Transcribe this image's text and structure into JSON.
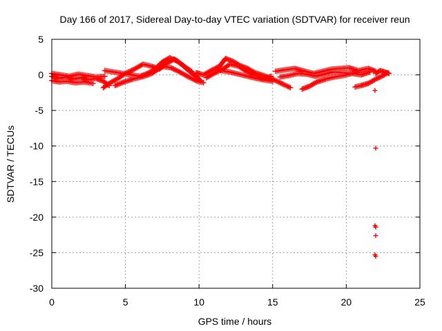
{
  "chart_data": {
    "type": "scatter",
    "title": "Day 166 of 2017, Sidereal Day-to-day VTEC variation (SDTVAR) for receiver reun",
    "xlabel": "GPS time / hours",
    "ylabel": "SDTVAR / TECUs",
    "xlim": [
      0,
      25
    ],
    "ylim": [
      -30,
      5
    ],
    "xticks": [
      0,
      5,
      10,
      15,
      20,
      25
    ],
    "yticks": [
      5,
      0,
      -5,
      -10,
      -15,
      -20,
      -25,
      -30
    ],
    "grid": true,
    "marker": "+",
    "color": "#ff0000",
    "series": [
      {
        "name": "SDTVAR",
        "tracks": [
          [
            [
              0.0,
              -0.2
            ],
            [
              0.5,
              -0.5
            ],
            [
              1.0,
              -0.3
            ],
            [
              1.5,
              -0.6
            ],
            [
              2.0,
              -0.4
            ],
            [
              2.5,
              -0.7
            ],
            [
              3.0,
              -0.5
            ],
            [
              3.5,
              -0.9
            ],
            [
              3.9,
              -1.5
            ]
          ],
          [
            [
              0.0,
              0.2
            ],
            [
              0.6,
              0.0
            ],
            [
              1.2,
              -0.2
            ],
            [
              1.8,
              0.1
            ],
            [
              2.4,
              -0.1
            ],
            [
              3.0,
              -0.3
            ],
            [
              3.6,
              -0.2
            ]
          ],
          [
            [
              0.0,
              -0.8
            ],
            [
              0.5,
              -1.0
            ],
            [
              1.0,
              -0.9
            ],
            [
              1.6,
              -1.1
            ],
            [
              2.2,
              -1.0
            ],
            [
              2.8,
              -1.2
            ]
          ],
          [
            [
              3.5,
              -1.8
            ],
            [
              3.9,
              -1.2
            ],
            [
              4.5,
              -0.5
            ],
            [
              5.0,
              0.2
            ],
            [
              5.6,
              0.8
            ],
            [
              6.2,
              1.5
            ],
            [
              6.8,
              1.2
            ],
            [
              7.3,
              0.8
            ],
            [
              7.8,
              1.6
            ],
            [
              8.3,
              2.2
            ],
            [
              8.8,
              1.5
            ],
            [
              9.3,
              0.6
            ],
            [
              9.8,
              -0.2
            ],
            [
              10.1,
              -0.8
            ]
          ],
          [
            [
              3.6,
              0.6
            ],
            [
              4.2,
              0.4
            ],
            [
              4.8,
              0.2
            ],
            [
              5.4,
              0.0
            ],
            [
              6.0,
              -0.2
            ],
            [
              6.5,
              0.2
            ],
            [
              7.0,
              0.8
            ],
            [
              7.5,
              1.8
            ],
            [
              8.0,
              2.4
            ],
            [
              8.5,
              2.0
            ],
            [
              9.0,
              1.2
            ],
            [
              9.5,
              0.5
            ]
          ],
          [
            [
              4.3,
              -1.5
            ],
            [
              4.9,
              -1.0
            ],
            [
              5.5,
              -0.6
            ],
            [
              6.1,
              -0.3
            ],
            [
              6.8,
              0.2
            ],
            [
              7.5,
              1.2
            ],
            [
              8.1,
              1.0
            ],
            [
              8.7,
              0.4
            ],
            [
              9.3,
              -0.3
            ],
            [
              9.9,
              -0.9
            ],
            [
              10.3,
              -1.1
            ]
          ],
          [
            [
              9.8,
              0.3
            ],
            [
              10.3,
              0.0
            ],
            [
              10.9,
              0.7
            ],
            [
              11.4,
              1.2
            ],
            [
              11.8,
              2.3
            ],
            [
              12.3,
              1.9
            ],
            [
              12.8,
              1.3
            ],
            [
              13.3,
              0.9
            ],
            [
              13.8,
              0.3
            ],
            [
              14.4,
              -0.1
            ],
            [
              15.0,
              -0.6
            ],
            [
              15.6,
              -1.2
            ],
            [
              16.2,
              -1.8
            ]
          ],
          [
            [
              10.5,
              -0.4
            ],
            [
              11.1,
              0.3
            ],
            [
              11.6,
              0.8
            ],
            [
              12.1,
              1.5
            ],
            [
              12.7,
              1.2
            ],
            [
              13.2,
              0.5
            ],
            [
              13.8,
              0.0
            ],
            [
              14.3,
              -0.6
            ],
            [
              14.9,
              -0.2
            ]
          ],
          [
            [
              11.5,
              0.6
            ],
            [
              12.1,
              0.4
            ],
            [
              12.7,
              0.1
            ],
            [
              13.3,
              -0.2
            ],
            [
              13.9,
              -0.5
            ],
            [
              14.4,
              -0.7
            ],
            [
              15.0,
              -0.9
            ]
          ],
          [
            [
              15.2,
              0.5
            ],
            [
              15.8,
              0.7
            ],
            [
              16.5,
              0.9
            ],
            [
              17.2,
              0.5
            ],
            [
              17.8,
              0.2
            ],
            [
              18.4,
              0.5
            ],
            [
              19.0,
              0.8
            ],
            [
              19.6,
              0.9
            ],
            [
              20.2,
              1.0
            ],
            [
              20.8,
              0.6
            ],
            [
              21.5,
              0.9
            ],
            [
              22.0,
              0.5
            ]
          ],
          [
            [
              15.5,
              -0.3
            ],
            [
              16.1,
              -0.1
            ],
            [
              16.7,
              0.2
            ],
            [
              17.3,
              0.1
            ],
            [
              17.9,
              -0.2
            ],
            [
              18.5,
              0.1
            ],
            [
              19.1,
              0.4
            ],
            [
              19.7,
              0.3
            ],
            [
              20.3,
              0.2
            ],
            [
              20.9,
              0.4
            ]
          ],
          [
            [
              17.0,
              -2.0
            ],
            [
              17.5,
              -1.6
            ],
            [
              18.0,
              -1.0
            ],
            [
              18.6,
              -0.6
            ],
            [
              19.2,
              -0.3
            ],
            [
              19.8,
              -0.1
            ],
            [
              20.4,
              0.2
            ],
            [
              21.0,
              0.0
            ],
            [
              21.6,
              0.4
            ]
          ],
          [
            [
              20.6,
              -1.7
            ],
            [
              21.0,
              -1.5
            ],
            [
              21.5,
              -1.2
            ],
            [
              22.0,
              -0.6
            ],
            [
              22.5,
              -0.1
            ],
            [
              22.8,
              0.3
            ]
          ],
          [
            [
              22.0,
              0.2
            ],
            [
              22.3,
              0.6
            ],
            [
              22.6,
              0.4
            ],
            [
              22.9,
              0.2
            ]
          ]
        ],
        "outliers": [
          [
            21.95,
            -2.2
          ],
          [
            22.0,
            -10.3
          ],
          [
            21.95,
            -21.2
          ],
          [
            22.0,
            -21.4
          ],
          [
            22.0,
            -22.6
          ],
          [
            21.95,
            -25.3
          ],
          [
            22.0,
            -25.5
          ]
        ]
      }
    ]
  }
}
